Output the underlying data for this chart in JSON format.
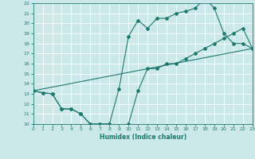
{
  "xlabel": "Humidex (Indice chaleur)",
  "bg_color": "#cce8e8",
  "grid_color": "#ffffff",
  "line_color": "#1a7a6e",
  "xlim": [
    0,
    23
  ],
  "ylim": [
    10,
    22
  ],
  "xticks": [
    0,
    1,
    2,
    3,
    4,
    5,
    6,
    7,
    8,
    9,
    10,
    11,
    12,
    13,
    14,
    15,
    16,
    17,
    18,
    19,
    20,
    21,
    22,
    23
  ],
  "yticks": [
    10,
    11,
    12,
    13,
    14,
    15,
    16,
    17,
    18,
    19,
    20,
    21,
    22
  ],
  "line1_x": [
    0,
    1,
    2,
    3,
    4,
    5,
    6,
    7,
    8,
    9,
    10,
    11,
    12,
    13,
    14,
    15,
    16,
    17,
    18,
    19,
    20,
    21,
    22,
    23
  ],
  "line1_y": [
    13.3,
    13.1,
    13.0,
    11.5,
    11.5,
    11.0,
    10.0,
    10.0,
    10.0,
    9.8,
    10.0,
    13.3,
    15.5,
    15.5,
    16.0,
    16.0,
    16.5,
    17.0,
    17.5,
    18.0,
    18.5,
    19.0,
    19.5,
    17.5
  ],
  "line2_x": [
    0,
    1,
    2,
    3,
    4,
    5,
    6,
    7,
    8,
    9,
    10,
    11,
    12,
    13,
    14,
    15,
    16,
    17,
    18,
    19,
    20,
    21,
    22,
    23
  ],
  "line2_y": [
    13.3,
    13.1,
    13.0,
    11.5,
    11.5,
    11.0,
    10.0,
    10.0,
    10.0,
    13.5,
    18.7,
    20.3,
    19.5,
    20.5,
    20.5,
    21.0,
    21.2,
    21.5,
    22.5,
    21.5,
    19.0,
    18.0,
    18.0,
    17.5
  ],
  "line3_x": [
    0,
    23
  ],
  "line3_y": [
    13.3,
    17.5
  ]
}
